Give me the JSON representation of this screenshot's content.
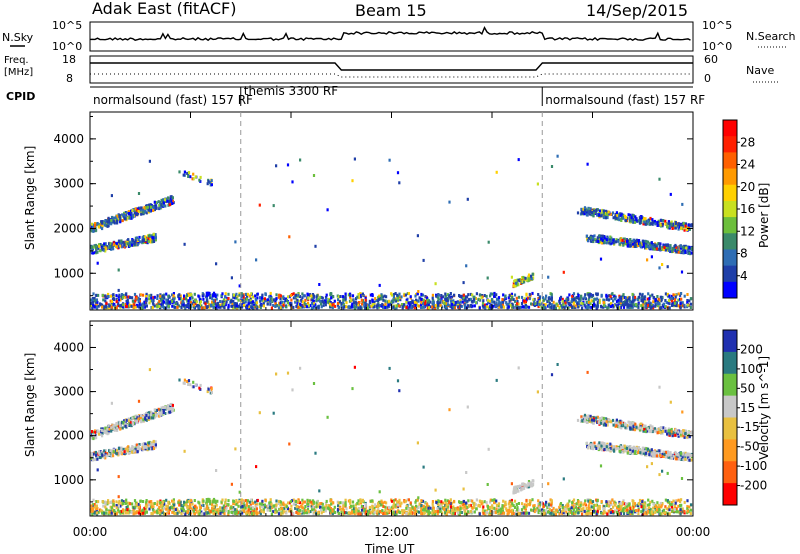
{
  "header": {
    "station": "Adak East (fitACF)",
    "beam": "Beam 15",
    "date": "14/Sep/2015"
  },
  "sky_panel": {
    "left_label": "N.Sky",
    "right_label": "N.Search",
    "left_ticks": [
      "10^5",
      "10^0"
    ],
    "right_ticks": [
      "10^5",
      "10^0"
    ]
  },
  "freq_panel": {
    "left_label_1": "Freq.",
    "left_label_2": "[MHz]",
    "right_label": "Nave",
    "left_ticks": [
      "18",
      "8"
    ],
    "right_ticks": [
      "60",
      "0"
    ]
  },
  "cpid": {
    "label": "CPID",
    "segments": [
      {
        "start_h": 0,
        "end_h": 6,
        "text": "normalsound (fast) 157 RF"
      },
      {
        "start_h": 6,
        "end_h": 18,
        "text": "themis 3300 RF"
      },
      {
        "start_h": 18,
        "end_h": 24,
        "text": "normalsound (fast) 157 RF"
      }
    ]
  },
  "x_axis": {
    "label": "Time UT",
    "ticks": [
      "00:00",
      "04:00",
      "08:00",
      "12:00",
      "16:00",
      "20:00",
      "00:00"
    ]
  },
  "colors": {
    "power": [
      "#0000ff",
      "#1f3fa8",
      "#2e6db4",
      "#3a8a6a",
      "#6cbf3c",
      "#c8e020",
      "#ffd000",
      "#ff9a00",
      "#ff6000",
      "#ff2000",
      "#ff0000"
    ],
    "velocity": [
      "#2030b0",
      "#2a7a80",
      "#6ac040",
      "#c8c8c8",
      "#e8c040",
      "#ff9a20",
      "#ff6010",
      "#ff0000"
    ]
  },
  "chart_data": [
    {
      "type": "heatmap",
      "title": "Beam 15",
      "xlabel": "Time UT",
      "ylabel": "Slant Range [km]",
      "xlim": [
        0,
        24
      ],
      "ylim": [
        180,
        4600
      ],
      "yticks": [
        "1000",
        "2000",
        "3000",
        "4000"
      ],
      "colorbar_label": "Power [dB]",
      "colorbar_ticks": [
        "4",
        "8",
        "12",
        "16",
        "20",
        "24",
        "28"
      ],
      "colorbar_range": [
        0,
        30
      ]
    },
    {
      "type": "heatmap",
      "xlabel": "Time UT",
      "ylabel": "Slant Range [km]",
      "xlim": [
        0,
        24
      ],
      "ylim": [
        180,
        4600
      ],
      "yticks": [
        "1000",
        "2000",
        "3000",
        "4000"
      ],
      "colorbar_label": "Velocity [m s^-1]",
      "colorbar_ticks": [
        "200",
        "100",
        "50",
        "15",
        "-15",
        "-50",
        "-100",
        "-200"
      ],
      "colorbar_range": [
        -250,
        250
      ]
    }
  ]
}
